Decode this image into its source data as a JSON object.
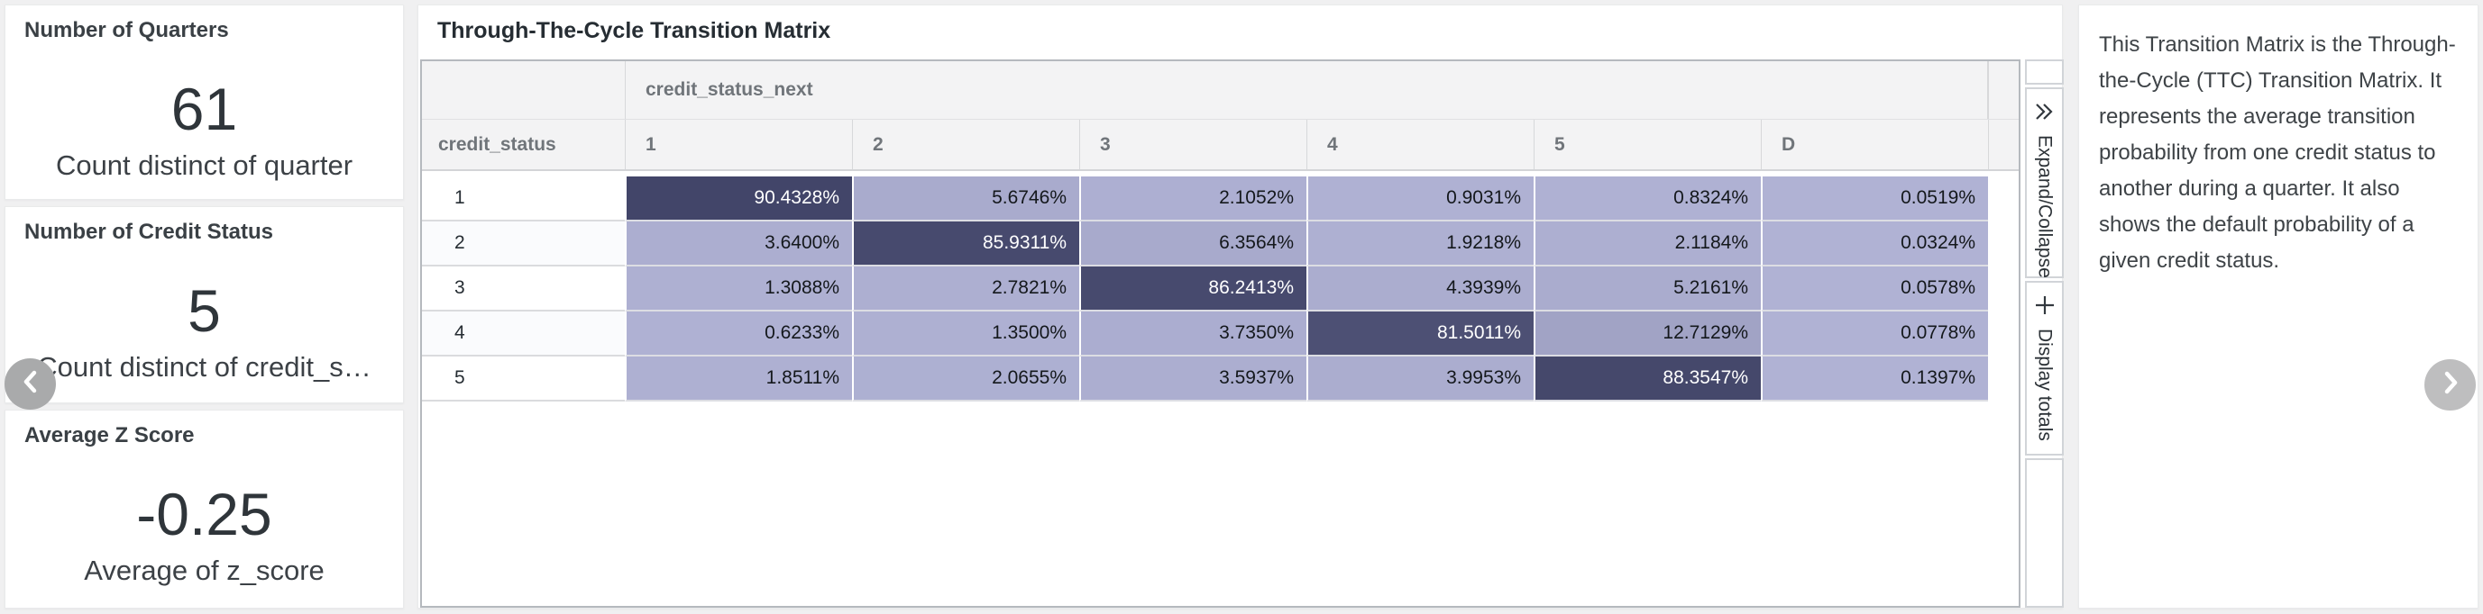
{
  "kpi_cards": [
    {
      "title": "Number of Quarters",
      "value": "61",
      "subtitle": "Count distinct of quarter"
    },
    {
      "title": "Number of Credit Status",
      "value": "5",
      "subtitle": "Count distinct of credit_s…"
    },
    {
      "title": "Average Z Score",
      "value": "-0.25",
      "subtitle": "Average of z_score"
    }
  ],
  "matrix": {
    "title": "Through-The-Cycle Transition Matrix",
    "column_group_label": "credit_status_next",
    "row_header": "credit_status",
    "columns": [
      "1",
      "2",
      "3",
      "4",
      "5",
      "D"
    ],
    "rows": [
      {
        "label": "1",
        "values": [
          "90.4328%",
          "5.6746%",
          "2.1052%",
          "0.9031%",
          "0.8324%",
          "0.0519%"
        ]
      },
      {
        "label": "2",
        "values": [
          "3.6400%",
          "85.9311%",
          "6.3564%",
          "1.9218%",
          "2.1184%",
          "0.0324%"
        ]
      },
      {
        "label": "3",
        "values": [
          "1.3088%",
          "2.7821%",
          "86.2413%",
          "4.3939%",
          "5.2161%",
          "0.0578%"
        ]
      },
      {
        "label": "4",
        "values": [
          "0.6233%",
          "1.3500%",
          "3.7350%",
          "81.5011%",
          "12.7129%",
          "0.0778%"
        ]
      },
      {
        "label": "5",
        "values": [
          "1.8511%",
          "2.0655%",
          "3.5937%",
          "3.9953%",
          "88.3547%",
          "0.1397%"
        ]
      }
    ],
    "heatmap": {
      "low_color": "#b0b2d4",
      "high_color": "#424569",
      "max_value": 90.4328
    }
  },
  "controls": {
    "expand_collapse": {
      "label": "Expand/Collapse",
      "icon": "double-chevron-right-icon"
    },
    "display_totals": {
      "label": "Display totals",
      "icon": "plus-icon"
    }
  },
  "description": {
    "text": "This Transition Matrix is the Through-the-Cycle (TTC) Transition Matrix. It represents the average transition probability from one credit status to another during a quarter. It also shows the default probability of a given credit status."
  },
  "nav": {
    "prev_icon": "chevron-left-icon",
    "next_icon": "chevron-right-icon"
  }
}
